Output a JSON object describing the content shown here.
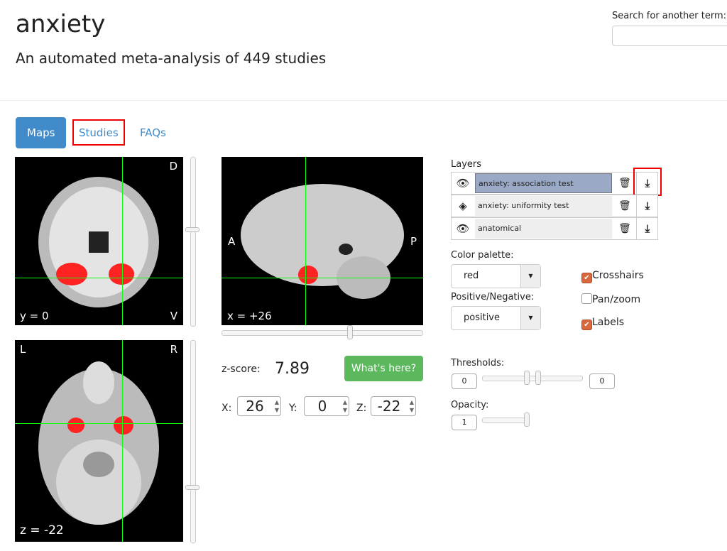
{
  "header": {
    "title": "anxiety",
    "subtitle": "An automated meta-analysis of 449 studies",
    "search_label": "Search for another term:",
    "search_value": ""
  },
  "tabs": [
    {
      "label": "Maps",
      "active": true
    },
    {
      "label": "Studies"
    },
    {
      "label": "FAQs"
    }
  ],
  "viewer": {
    "coronal": {
      "top_label": "D",
      "bottom_label": "V",
      "coord": "y = 0"
    },
    "sagittal": {
      "left_label": "A",
      "right_label": "P",
      "coord": "x = +26"
    },
    "axial": {
      "left_label": "L",
      "right_label": "R",
      "coord": "z = -22"
    },
    "zscore_label": "z-score:",
    "zscore": "7.89",
    "whats_here": "What's here?",
    "x_label": "X:",
    "x": "26",
    "y_label": "Y:",
    "y": "0",
    "z_label": "Z:",
    "z": "-22"
  },
  "layers": {
    "title": "Layers",
    "items": [
      {
        "name": "anxiety: association test",
        "visible": true,
        "selected": true
      },
      {
        "name": "anxiety: uniformity test",
        "visible": false
      },
      {
        "name": "anatomical",
        "visible": true
      }
    ]
  },
  "controls": {
    "palette_label": "Color palette:",
    "palette": "red",
    "posneg_label": "Positive/Negative:",
    "posneg": "positive",
    "crosshairs": "Crosshairs",
    "crosshairs_checked": true,
    "panzoom": "Pan/zoom",
    "panzoom_checked": false,
    "labels": "Labels",
    "labels_checked": true,
    "thresholds_label": "Thresholds:",
    "thr_low": "0",
    "thr_high": "0",
    "opacity_label": "Opacity:",
    "opacity": "1"
  },
  "colors": {
    "accent": "#428bca",
    "success": "#5cb85c",
    "crosshair": "#00ff00",
    "highlight": "#ee0000"
  }
}
